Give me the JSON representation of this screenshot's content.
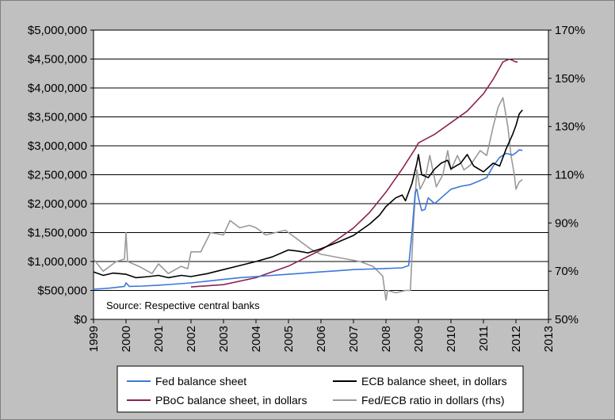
{
  "chart_data": {
    "type": "line",
    "annotation": "Source: Respective central banks",
    "x_axis": {
      "ticks": [
        "1999",
        "2000",
        "2001",
        "2002",
        "2003",
        "2004",
        "2005",
        "2006",
        "2007",
        "2008",
        "2009",
        "2010",
        "2011",
        "2012",
        "2013"
      ],
      "range": [
        1999,
        2013
      ]
    },
    "y_left": {
      "ticks": [
        "$0",
        "$500,000",
        "$1,000,000",
        "$1,500,000",
        "$2,000,000",
        "$2,500,000",
        "$3,000,000",
        "$3,500,000",
        "$4,000,000",
        "$4,500,000",
        "$5,000,000"
      ],
      "range": [
        0,
        5000000
      ]
    },
    "y_right": {
      "ticks": [
        "50%",
        "70%",
        "90%",
        "110%",
        "130%",
        "150%",
        "170%"
      ],
      "range": [
        50,
        170
      ]
    },
    "grid": "horizontal",
    "legend_position": "bottom",
    "series": [
      {
        "name": "Fed balance sheet",
        "color": "#3c78d8",
        "axis": "left",
        "points": [
          [
            1999.0,
            520000
          ],
          [
            1999.5,
            540000
          ],
          [
            1999.95,
            570000
          ],
          [
            2000.0,
            630000
          ],
          [
            2000.1,
            570000
          ],
          [
            2000.5,
            575000
          ],
          [
            2001.0,
            590000
          ],
          [
            2001.5,
            610000
          ],
          [
            2002.0,
            630000
          ],
          [
            2002.5,
            660000
          ],
          [
            2003.0,
            690000
          ],
          [
            2003.5,
            720000
          ],
          [
            2004.0,
            740000
          ],
          [
            2004.5,
            760000
          ],
          [
            2005.0,
            780000
          ],
          [
            2005.5,
            800000
          ],
          [
            2006.0,
            820000
          ],
          [
            2006.5,
            840000
          ],
          [
            2007.0,
            860000
          ],
          [
            2007.5,
            870000
          ],
          [
            2008.0,
            880000
          ],
          [
            2008.5,
            890000
          ],
          [
            2008.7,
            930000
          ],
          [
            2008.8,
            1500000
          ],
          [
            2008.9,
            2200000
          ],
          [
            2008.95,
            2250000
          ],
          [
            2009.0,
            2100000
          ],
          [
            2009.1,
            1880000
          ],
          [
            2009.2,
            1900000
          ],
          [
            2009.3,
            2100000
          ],
          [
            2009.4,
            2050000
          ],
          [
            2009.5,
            2000000
          ],
          [
            2009.7,
            2100000
          ],
          [
            2010.0,
            2250000
          ],
          [
            2010.3,
            2300000
          ],
          [
            2010.6,
            2330000
          ],
          [
            2010.9,
            2400000
          ],
          [
            2011.1,
            2450000
          ],
          [
            2011.3,
            2650000
          ],
          [
            2011.5,
            2800000
          ],
          [
            2011.7,
            2870000
          ],
          [
            2011.9,
            2840000
          ],
          [
            2012.0,
            2880000
          ],
          [
            2012.1,
            2930000
          ],
          [
            2012.2,
            2920000
          ]
        ]
      },
      {
        "name": "ECB balance sheet, in dollars",
        "color": "#000000",
        "axis": "left",
        "points": [
          [
            1999.0,
            820000
          ],
          [
            1999.3,
            760000
          ],
          [
            1999.6,
            800000
          ],
          [
            2000.0,
            780000
          ],
          [
            2000.3,
            720000
          ],
          [
            2000.7,
            740000
          ],
          [
            2001.0,
            760000
          ],
          [
            2001.3,
            720000
          ],
          [
            2001.7,
            760000
          ],
          [
            2002.0,
            740000
          ],
          [
            2002.5,
            790000
          ],
          [
            2003.0,
            860000
          ],
          [
            2003.5,
            930000
          ],
          [
            2004.0,
            1000000
          ],
          [
            2004.5,
            1080000
          ],
          [
            2005.0,
            1200000
          ],
          [
            2005.3,
            1180000
          ],
          [
            2005.6,
            1150000
          ],
          [
            2006.0,
            1220000
          ],
          [
            2006.5,
            1330000
          ],
          [
            2007.0,
            1450000
          ],
          [
            2007.5,
            1650000
          ],
          [
            2007.8,
            1800000
          ],
          [
            2008.0,
            1950000
          ],
          [
            2008.3,
            2100000
          ],
          [
            2008.5,
            2150000
          ],
          [
            2008.6,
            2050000
          ],
          [
            2008.8,
            2350000
          ],
          [
            2008.95,
            2700000
          ],
          [
            2009.0,
            2850000
          ],
          [
            2009.1,
            2500000
          ],
          [
            2009.3,
            2450000
          ],
          [
            2009.5,
            2600000
          ],
          [
            2009.7,
            2700000
          ],
          [
            2009.9,
            2750000
          ],
          [
            2010.0,
            2600000
          ],
          [
            2010.3,
            2700000
          ],
          [
            2010.5,
            2850000
          ],
          [
            2010.7,
            2650000
          ],
          [
            2011.0,
            2550000
          ],
          [
            2011.3,
            2700000
          ],
          [
            2011.5,
            2650000
          ],
          [
            2011.7,
            2950000
          ],
          [
            2011.9,
            3200000
          ],
          [
            2012.0,
            3350000
          ],
          [
            2012.1,
            3550000
          ],
          [
            2012.2,
            3620000
          ]
        ]
      },
      {
        "name": "PBoC balance sheet, in dollars",
        "color": "#8b2252",
        "axis": "left",
        "points": [
          [
            2002.0,
            560000
          ],
          [
            2003.0,
            600000
          ],
          [
            2004.0,
            720000
          ],
          [
            2005.0,
            920000
          ],
          [
            2006.0,
            1200000
          ],
          [
            2006.5,
            1380000
          ],
          [
            2007.0,
            1580000
          ],
          [
            2007.5,
            1850000
          ],
          [
            2008.0,
            2200000
          ],
          [
            2008.5,
            2600000
          ],
          [
            2008.9,
            2950000
          ],
          [
            2009.0,
            3050000
          ],
          [
            2009.5,
            3200000
          ],
          [
            2010.0,
            3400000
          ],
          [
            2010.5,
            3600000
          ],
          [
            2011.0,
            3900000
          ],
          [
            2011.3,
            4150000
          ],
          [
            2011.6,
            4450000
          ],
          [
            2011.8,
            4500000
          ],
          [
            2012.0,
            4450000
          ],
          [
            2012.05,
            4450000
          ]
        ]
      },
      {
        "name": "Fed/ECB ratio in dollars (rhs)",
        "color": "#999999",
        "axis": "right",
        "points": [
          [
            1999.0,
            75
          ],
          [
            1999.3,
            70
          ],
          [
            1999.7,
            74
          ],
          [
            1999.95,
            75
          ],
          [
            2000.0,
            86
          ],
          [
            2000.05,
            74
          ],
          [
            2000.4,
            72
          ],
          [
            2000.8,
            69
          ],
          [
            2001.0,
            73
          ],
          [
            2001.3,
            69
          ],
          [
            2001.7,
            72
          ],
          [
            2001.9,
            71
          ],
          [
            2002.0,
            78
          ],
          [
            2002.3,
            78
          ],
          [
            2002.6,
            86
          ],
          [
            2003.0,
            85
          ],
          [
            2003.2,
            91
          ],
          [
            2003.5,
            88
          ],
          [
            2003.8,
            89
          ],
          [
            2004.0,
            88
          ],
          [
            2004.3,
            85
          ],
          [
            2004.6,
            86
          ],
          [
            2004.9,
            87
          ],
          [
            2005.1,
            85
          ],
          [
            2005.4,
            82
          ],
          [
            2005.7,
            79
          ],
          [
            2006.0,
            77
          ],
          [
            2006.4,
            76
          ],
          [
            2006.8,
            75
          ],
          [
            2007.2,
            74
          ],
          [
            2007.6,
            72
          ],
          [
            2007.9,
            68
          ],
          [
            2008.0,
            58
          ],
          [
            2008.05,
            62
          ],
          [
            2008.3,
            61
          ],
          [
            2008.6,
            62
          ],
          [
            2008.75,
            62
          ],
          [
            2008.85,
            90
          ],
          [
            2008.95,
            112
          ],
          [
            2009.05,
            104
          ],
          [
            2009.2,
            108
          ],
          [
            2009.35,
            118
          ],
          [
            2009.55,
            105
          ],
          [
            2009.75,
            110
          ],
          [
            2009.9,
            120
          ],
          [
            2010.0,
            112
          ],
          [
            2010.2,
            118
          ],
          [
            2010.4,
            112
          ],
          [
            2010.6,
            114
          ],
          [
            2010.9,
            120
          ],
          [
            2011.1,
            118
          ],
          [
            2011.3,
            130
          ],
          [
            2011.45,
            138
          ],
          [
            2011.6,
            142
          ],
          [
            2011.75,
            130
          ],
          [
            2011.85,
            118
          ],
          [
            2011.95,
            110
          ],
          [
            2012.0,
            104
          ],
          [
            2012.1,
            107
          ],
          [
            2012.2,
            108
          ]
        ]
      }
    ]
  }
}
